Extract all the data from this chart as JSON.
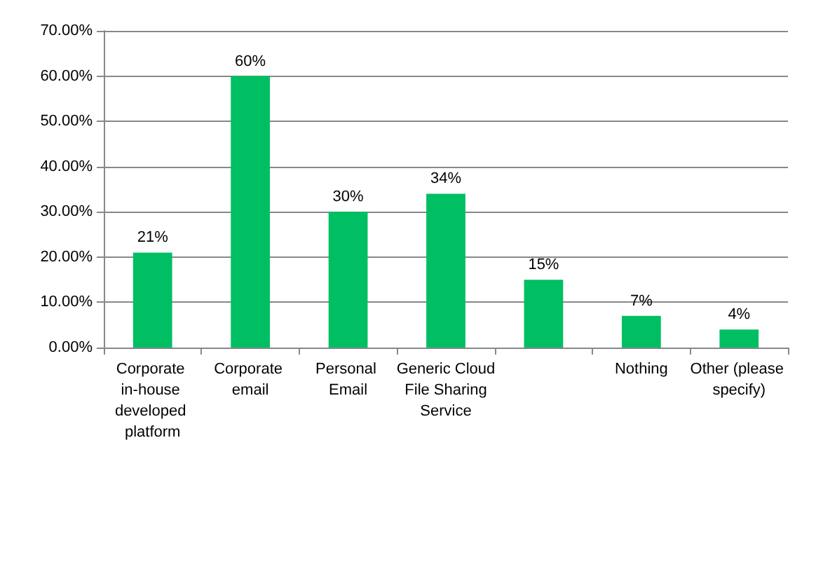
{
  "chart_data": {
    "type": "bar",
    "categories": [
      "Corporate in-house developed platform",
      "Corporate email",
      "Personal Email",
      "Generic Cloud File Sharing Service",
      null,
      "Nothing",
      "Other (please specify)"
    ],
    "values": [
      21,
      60,
      30,
      34,
      15,
      7,
      4
    ],
    "value_labels": [
      "21%",
      "60%",
      "30%",
      "34%",
      "15%",
      "7%",
      "4%"
    ],
    "color": "#00bf63",
    "ylim": [
      0,
      70
    ],
    "yticks": [
      {
        "value": 0,
        "label": "0.00%"
      },
      {
        "value": 10,
        "label": "10.00%"
      },
      {
        "value": 20,
        "label": "20.00%"
      },
      {
        "value": 30,
        "label": "30.00%"
      },
      {
        "value": 40,
        "label": "40.00%"
      },
      {
        "value": 50,
        "label": "50.00%"
      },
      {
        "value": 60,
        "label": "60.00%"
      },
      {
        "value": 70,
        "label": "70.00%"
      }
    ],
    "grid": "y"
  }
}
